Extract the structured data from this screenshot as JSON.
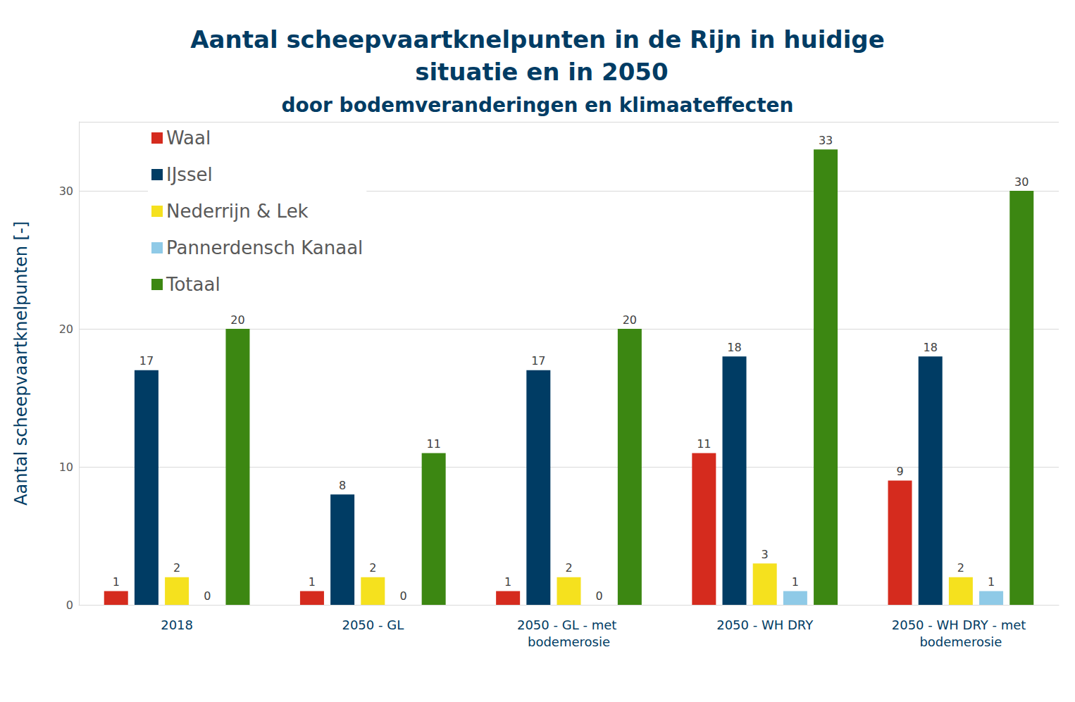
{
  "chart_data": {
    "type": "bar",
    "title": "Aantal scheepvaartknelpunten in de Rijn in huidige situatie en in 2050",
    "subtitle": "door bodemveranderingen en klimaateffecten",
    "y_label": "Aantal scheepvaartknelpunten [-]",
    "categories": [
      "2018",
      "2050 - GL",
      "2050 - GL - met bodemerosie",
      "2050 - WH DRY",
      "2050 - WH DRY - met bodemerosie"
    ],
    "series": [
      {
        "name": "Waal",
        "color": "#d52b1e",
        "values": [
          1,
          1,
          1,
          11,
          9
        ]
      },
      {
        "name": "IJssel",
        "color": "#003c64",
        "values": [
          17,
          8,
          17,
          18,
          18
        ]
      },
      {
        "name": "Nederrijn & Lek",
        "color": "#f5e11e",
        "values": [
          2,
          2,
          2,
          3,
          2
        ]
      },
      {
        "name": "Pannerdensch Kanaal",
        "color": "#8fcae7",
        "values": [
          0,
          0,
          0,
          1,
          1
        ]
      },
      {
        "name": "Totaal",
        "color": "#3c8712",
        "values": [
          20,
          11,
          20,
          33,
          30
        ]
      }
    ],
    "ylim": [
      0,
      35
    ],
    "yticks": [
      0,
      10,
      20,
      30
    ],
    "grid": true,
    "legend": "top-left",
    "data_labels": true
  }
}
